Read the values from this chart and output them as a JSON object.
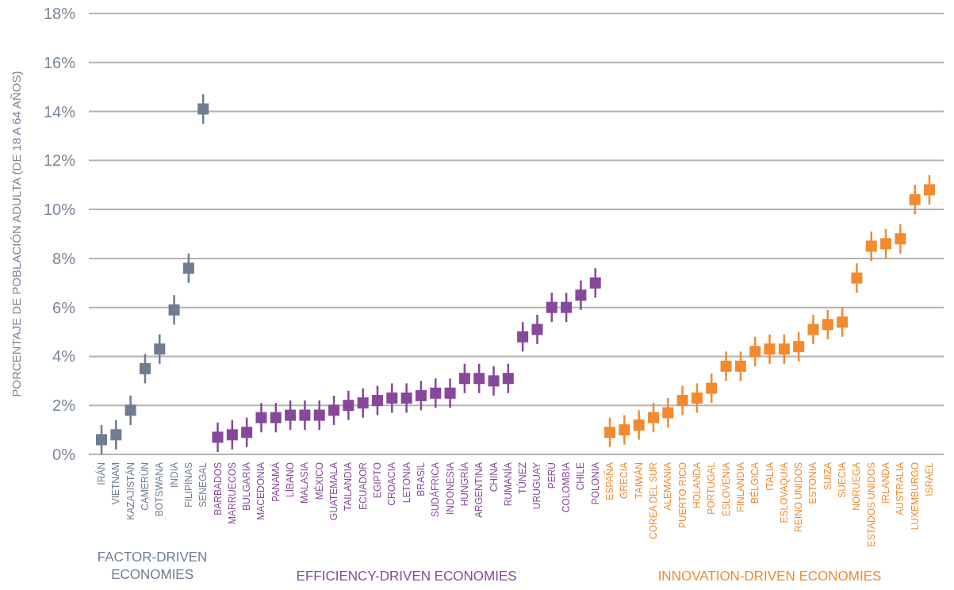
{
  "chart_data": {
    "type": "scatter",
    "ylabel": "PORCENTAJE DE POBLACIÓN ADULTA (DE 18 A 64 AÑOS)",
    "categories": [
      "IRÁN",
      "VIETNAM",
      "KAZAJISTÁN",
      "CAMERÚN",
      "BOTSWANA",
      "INDIA",
      "FILIPINAS",
      "SENEGAL",
      "BARBADOS",
      "MARRUECOS",
      "BULGARIA",
      "MACEDONIA",
      "PANAMÁ",
      "LÍBANO",
      "MALASIA",
      "MÉXICO",
      "GUATEMALA",
      "TAILANDIA",
      "ECUADOR",
      "EGIPTO",
      "CROACIA",
      "LETONIA",
      "BRASIL",
      "SUDÁFRICA",
      "INDONESIA",
      "HUNGRÍA",
      "ARGENTINA",
      "CHINA",
      "RUMANÍA",
      "TÚNEZ",
      "URUGUAY",
      "PERÚ",
      "COLOMBIA",
      "CHILE",
      "POLONIA",
      "ESPAÑA",
      "GRECIA",
      "TAIWÁN",
      "COREA DEL SUR",
      "ALEMANIA",
      "PUERTO RICO",
      "HOLANDA",
      "PORTUGAL",
      "ESLOVENIA",
      "FINLANDIA",
      "BÉLGICA",
      "ITALIA",
      "ESLOVAQUIA",
      "REINO UNIDOS",
      "ESTONIA",
      "SUIZA",
      "SUECIA",
      "NORUEGA",
      "ESTADOS UNIDOS",
      "IRLANDA",
      "AUSTRALIA",
      "LUXEMBURGO",
      "ISRAEL"
    ],
    "series": [
      {
        "name": "FACTOR-DRIVEN ECONOMIES",
        "color": "#6e7d8f",
        "values": [
          0.6,
          0.8,
          1.8,
          3.5,
          4.3,
          5.9,
          7.6,
          14.1,
          null,
          null,
          null,
          null,
          null,
          null,
          null,
          null,
          null,
          null,
          null,
          null,
          null,
          null,
          null,
          null,
          null,
          null,
          null,
          null,
          null,
          null,
          null,
          null,
          null,
          null,
          null,
          null,
          null,
          null,
          null,
          null,
          null,
          null,
          null,
          null,
          null,
          null,
          null,
          null,
          null,
          null,
          null,
          null,
          null,
          null,
          null,
          null,
          null,
          null
        ],
        "errors": [
          0.6,
          0.6,
          0.6,
          0.6,
          0.6,
          0.6,
          0.6,
          0.6,
          null,
          null,
          null,
          null,
          null,
          null,
          null,
          null,
          null,
          null,
          null,
          null,
          null,
          null,
          null,
          null,
          null,
          null,
          null,
          null,
          null,
          null,
          null,
          null,
          null,
          null,
          null,
          null,
          null,
          null,
          null,
          null,
          null,
          null,
          null,
          null,
          null,
          null,
          null,
          null,
          null,
          null,
          null,
          null,
          null,
          null,
          null,
          null,
          null,
          null
        ]
      },
      {
        "name": "EFFICIENCY-DRIVEN ECONOMIES",
        "color": "#86489a",
        "values": [
          null,
          null,
          null,
          null,
          null,
          null,
          null,
          null,
          0.7,
          0.8,
          0.9,
          1.5,
          1.5,
          1.6,
          1.6,
          1.6,
          1.8,
          2.0,
          2.1,
          2.2,
          2.3,
          2.3,
          2.4,
          2.5,
          2.5,
          3.1,
          3.1,
          3.0,
          3.1,
          4.8,
          5.1,
          6.0,
          6.0,
          6.5,
          7.0,
          null,
          null,
          null,
          null,
          null,
          null,
          null,
          null,
          null,
          null,
          null,
          null,
          null,
          null,
          null,
          null,
          null,
          null,
          null,
          null,
          null,
          null,
          null
        ],
        "errors": [
          null,
          null,
          null,
          null,
          null,
          null,
          null,
          null,
          0.6,
          0.6,
          0.6,
          0.6,
          0.6,
          0.6,
          0.6,
          0.6,
          0.6,
          0.6,
          0.6,
          0.6,
          0.6,
          0.6,
          0.6,
          0.6,
          0.6,
          0.6,
          0.6,
          0.6,
          0.6,
          0.6,
          0.6,
          0.6,
          0.6,
          0.6,
          0.6,
          null,
          null,
          null,
          null,
          null,
          null,
          null,
          null,
          null,
          null,
          null,
          null,
          null,
          null,
          null,
          null,
          null,
          null,
          null,
          null,
          null,
          null,
          null
        ]
      },
      {
        "name": "INNOVATION-DRIVEN ECONOMIES",
        "color": "#f28a30",
        "values": [
          null,
          null,
          null,
          null,
          null,
          null,
          null,
          null,
          null,
          null,
          null,
          null,
          null,
          null,
          null,
          null,
          null,
          null,
          null,
          null,
          null,
          null,
          null,
          null,
          null,
          null,
          null,
          null,
          null,
          null,
          null,
          null,
          null,
          null,
          null,
          0.9,
          1.0,
          1.2,
          1.5,
          1.7,
          2.2,
          2.3,
          2.7,
          3.6,
          3.6,
          4.2,
          4.3,
          4.3,
          4.4,
          5.1,
          5.3,
          5.4,
          7.2,
          8.5,
          8.6,
          8.8,
          10.4,
          10.8
        ],
        "errors": [
          null,
          null,
          null,
          null,
          null,
          null,
          null,
          null,
          null,
          null,
          null,
          null,
          null,
          null,
          null,
          null,
          null,
          null,
          null,
          null,
          null,
          null,
          null,
          null,
          null,
          null,
          null,
          null,
          null,
          null,
          null,
          null,
          null,
          null,
          null,
          0.6,
          0.6,
          0.6,
          0.6,
          0.6,
          0.6,
          0.6,
          0.6,
          0.6,
          0.6,
          0.6,
          0.6,
          0.6,
          0.6,
          0.6,
          0.6,
          0.6,
          0.6,
          0.6,
          0.6,
          0.6,
          0.6,
          0.6
        ]
      }
    ],
    "ylim": [
      0,
      18
    ],
    "yticks": [
      {
        "value": 0,
        "label": "0%"
      },
      {
        "value": 2,
        "label": "2%"
      },
      {
        "value": 4,
        "label": "4%"
      },
      {
        "value": 6,
        "label": "6%"
      },
      {
        "value": 8,
        "label": "8%"
      },
      {
        "value": 10,
        "label": "10%"
      },
      {
        "value": 12,
        "label": "12%"
      },
      {
        "value": 14,
        "label": "14%"
      },
      {
        "value": 16,
        "label": "16%"
      },
      {
        "value": 18,
        "label": "18%"
      }
    ],
    "grid": "y",
    "marker": "square"
  }
}
